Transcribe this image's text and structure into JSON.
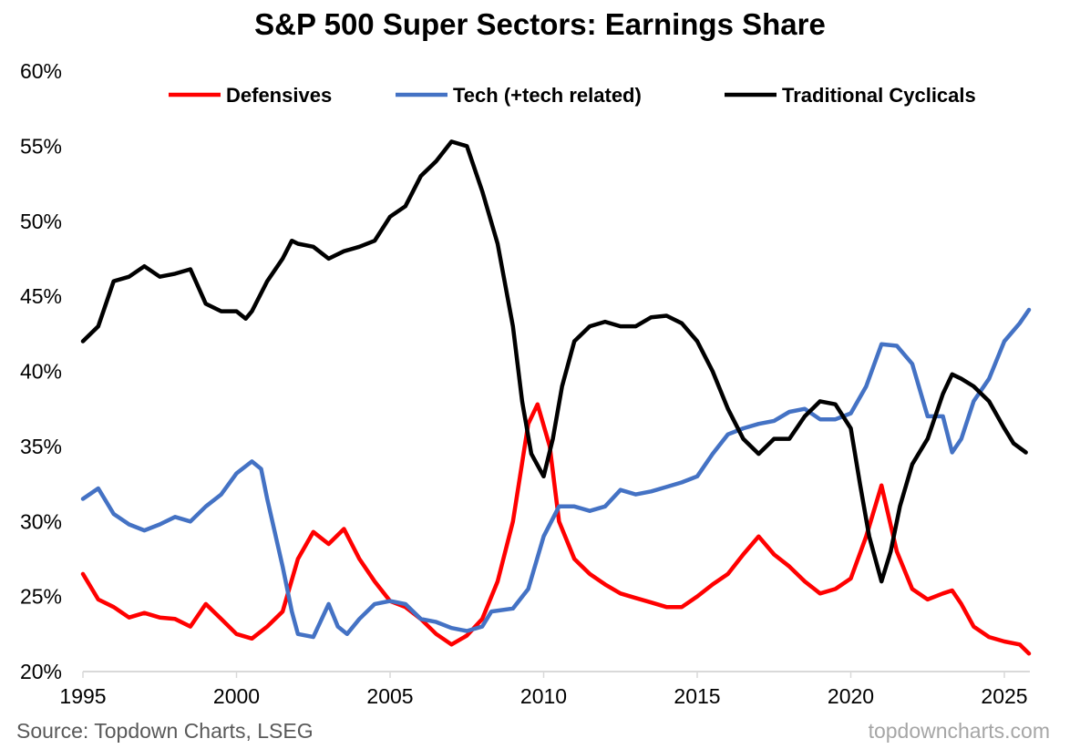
{
  "chart_data": {
    "type": "line",
    "title": "S&P 500 Super Sectors: Earnings Share",
    "xlabel": "",
    "ylabel": "",
    "xlim": [
      1995,
      2025.9
    ],
    "ylim": [
      20,
      60
    ],
    "x_ticks": [
      "1995",
      "2000",
      "2005",
      "2010",
      "2015",
      "2020",
      "2025"
    ],
    "y_ticks": [
      "20%",
      "25%",
      "30%",
      "35%",
      "40%",
      "45%",
      "50%",
      "55%",
      "60%"
    ],
    "grid": false,
    "legend": "top",
    "series": [
      {
        "name": "Defensives",
        "color": "#ff0000",
        "x": [
          1995,
          1995.5,
          1996,
          1996.5,
          1997,
          1997.5,
          1998,
          1998.5,
          1999,
          1999.5,
          2000,
          2000.5,
          2001,
          2001.5,
          2002,
          2002.5,
          2003,
          2003.5,
          2004,
          2004.5,
          2005,
          2005.5,
          2006,
          2006.5,
          2007,
          2007.5,
          2008,
          2008.5,
          2009,
          2009.5,
          2009.8,
          2010.2,
          2010.5,
          2011,
          2011.5,
          2012,
          2012.5,
          2013,
          2013.5,
          2014,
          2014.5,
          2015,
          2015.5,
          2016,
          2016.5,
          2017,
          2017.5,
          2018,
          2018.5,
          2019,
          2019.5,
          2020,
          2020.5,
          2021,
          2021.5,
          2022,
          2022.5,
          2023,
          2023.3,
          2023.6,
          2024,
          2024.5,
          2025,
          2025.5,
          2025.8
        ],
        "y": [
          26.5,
          24.8,
          24.3,
          23.6,
          23.9,
          23.6,
          23.5,
          23,
          24.5,
          23.5,
          22.5,
          22.2,
          23,
          24,
          27.5,
          29.3,
          28.5,
          29.5,
          27.5,
          26,
          24.7,
          24.3,
          23.5,
          22.5,
          21.8,
          22.4,
          23.5,
          26,
          30,
          36.5,
          37.8,
          35,
          30,
          27.5,
          26.5,
          25.8,
          25.2,
          24.9,
          24.6,
          24.3,
          24.3,
          25,
          25.8,
          26.5,
          27.8,
          29,
          27.8,
          27,
          26,
          25.2,
          25.5,
          26.2,
          29,
          32.4,
          28,
          25.5,
          24.8,
          25.2,
          25.4,
          24.5,
          23,
          22.3,
          22,
          21.8,
          21.2
        ]
      },
      {
        "name": "Tech (+tech related)",
        "color": "#4472c4",
        "x": [
          1995,
          1995.5,
          1996,
          1996.5,
          1997,
          1997.5,
          1998,
          1998.5,
          1999,
          1999.5,
          2000,
          2000.5,
          2000.8,
          2001,
          2001.5,
          2001.8,
          2002,
          2002.5,
          2003,
          2003.3,
          2003.6,
          2004,
          2004.5,
          2005,
          2005.5,
          2006,
          2006.5,
          2007,
          2007.5,
          2008,
          2008.3,
          2009,
          2009.5,
          2010,
          2010.5,
          2011,
          2011.5,
          2012,
          2012.5,
          2013,
          2013.5,
          2014,
          2014.5,
          2015,
          2015.5,
          2016,
          2016.5,
          2017,
          2017.5,
          2018,
          2018.5,
          2019,
          2019.5,
          2020,
          2020.5,
          2021,
          2021.5,
          2022,
          2022.5,
          2023,
          2023.3,
          2023.6,
          2024,
          2024.5,
          2025,
          2025.5,
          2025.8
        ],
        "y": [
          31.5,
          32.2,
          30.5,
          29.8,
          29.4,
          29.8,
          30.3,
          30,
          31,
          31.8,
          33.2,
          34,
          33.5,
          31.5,
          27,
          24,
          22.5,
          22.3,
          24.5,
          23,
          22.5,
          23.5,
          24.5,
          24.7,
          24.5,
          23.5,
          23.3,
          22.9,
          22.7,
          23,
          24,
          24.2,
          25.5,
          29,
          31,
          31,
          30.7,
          31,
          32.1,
          31.8,
          32,
          32.3,
          32.6,
          33,
          34.5,
          35.8,
          36.2,
          36.5,
          36.7,
          37.3,
          37.5,
          36.8,
          36.8,
          37.2,
          39,
          41.8,
          41.7,
          40.5,
          37,
          37,
          34.6,
          35.5,
          38,
          39.5,
          42,
          43.2,
          44.1
        ]
      },
      {
        "name": "Traditional Cyclicals",
        "color": "#000000",
        "x": [
          1995,
          1995.5,
          1996,
          1996.5,
          1997,
          1997.5,
          1998,
          1998.5,
          1999,
          1999.5,
          2000,
          2000.3,
          2000.5,
          2001,
          2001.5,
          2001.8,
          2002,
          2002.5,
          2003,
          2003.5,
          2004,
          2004.5,
          2005,
          2005.5,
          2006,
          2006.5,
          2007,
          2007.5,
          2008,
          2008.5,
          2009,
          2009.3,
          2009.6,
          2010,
          2010.3,
          2010.6,
          2011,
          2011.5,
          2012,
          2012.5,
          2013,
          2013.5,
          2014,
          2014.5,
          2015,
          2015.5,
          2016,
          2016.5,
          2017,
          2017.5,
          2018,
          2018.5,
          2019,
          2019.5,
          2020,
          2020.3,
          2020.6,
          2021,
          2021.3,
          2021.6,
          2022,
          2022.5,
          2023,
          2023.3,
          2023.6,
          2024,
          2024.5,
          2025,
          2025.3,
          2025.7
        ],
        "y": [
          42,
          43,
          46,
          46.3,
          47,
          46.3,
          46.5,
          46.8,
          44.5,
          44,
          44,
          43.5,
          44,
          46,
          47.5,
          48.7,
          48.5,
          48.3,
          47.5,
          48,
          48.3,
          48.7,
          50.3,
          51,
          53,
          54,
          55.3,
          55,
          52,
          48.5,
          43,
          38,
          34.5,
          33,
          35.5,
          39,
          42,
          43,
          43.3,
          43,
          43,
          43.6,
          43.7,
          43.2,
          42,
          40,
          37.5,
          35.5,
          34.5,
          35.5,
          35.5,
          37,
          38,
          37.8,
          36.2,
          32.5,
          29,
          26,
          28,
          31,
          33.8,
          35.5,
          38.5,
          39.8,
          39.5,
          39,
          38,
          36.2,
          35.2,
          34.6
        ]
      }
    ]
  },
  "footer": {
    "source": "Source: Topdown Charts, LSEG",
    "site": "topdowncharts.com"
  }
}
